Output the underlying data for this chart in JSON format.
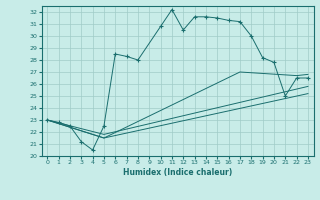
{
  "xlabel": "Humidex (Indice chaleur)",
  "bg_color": "#c8ece8",
  "grid_color": "#a0ccc8",
  "line_color": "#1a6e6e",
  "xlim": [
    -0.5,
    23.5
  ],
  "ylim": [
    20,
    32.5
  ],
  "yticks": [
    20,
    21,
    22,
    23,
    24,
    25,
    26,
    27,
    28,
    29,
    30,
    31,
    32
  ],
  "xticks": [
    0,
    1,
    2,
    3,
    4,
    5,
    6,
    7,
    8,
    9,
    10,
    11,
    12,
    13,
    14,
    15,
    16,
    17,
    18,
    19,
    20,
    21,
    22,
    23
  ],
  "line1_x": [
    0,
    1,
    2,
    3,
    4,
    5,
    6,
    7,
    8,
    10,
    11,
    12,
    13,
    14,
    15,
    16,
    17,
    18,
    19,
    20,
    21,
    22,
    23
  ],
  "line1_y": [
    23.0,
    22.8,
    22.5,
    21.2,
    20.5,
    22.5,
    28.5,
    28.3,
    28.0,
    30.8,
    32.2,
    30.5,
    31.6,
    31.6,
    31.5,
    31.3,
    31.2,
    30.0,
    28.2,
    27.8,
    25.0,
    26.5,
    26.5
  ],
  "line2_x": [
    0,
    5,
    17,
    22,
    23
  ],
  "line2_y": [
    23.0,
    21.5,
    27.0,
    26.7,
    26.8
  ],
  "line3_x": [
    0,
    5,
    23
  ],
  "line3_y": [
    23.0,
    21.5,
    25.2
  ],
  "line4_x": [
    0,
    5,
    23
  ],
  "line4_y": [
    23.0,
    21.8,
    25.8
  ]
}
